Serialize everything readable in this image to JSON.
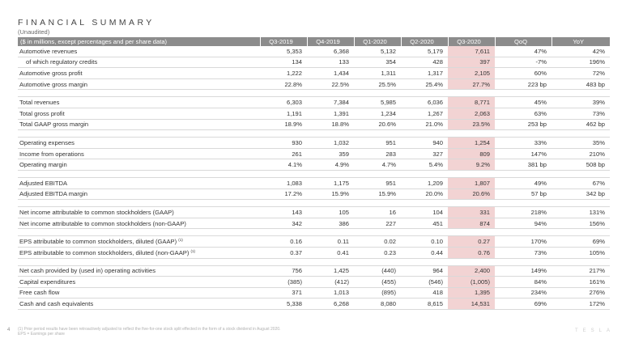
{
  "title": "FINANCIAL SUMMARY",
  "subtitle": "(Unaudited)",
  "header": {
    "label": "($ in millions, except percentages and per share data)",
    "columns": [
      "Q3-2019",
      "Q4-2019",
      "Q1-2020",
      "Q2-2020",
      "Q3-2020",
      "QoQ",
      "YoY"
    ]
  },
  "groups": [
    [
      {
        "label": "Automotive revenues",
        "values": [
          "5,353",
          "6,368",
          "5,132",
          "5,179",
          "7,611",
          "47%",
          "42%"
        ]
      },
      {
        "label": "of which regulatory credits",
        "indent": true,
        "values": [
          "134",
          "133",
          "354",
          "428",
          "397",
          "-7%",
          "196%"
        ]
      },
      {
        "label": "Automotive gross profit",
        "values": [
          "1,222",
          "1,434",
          "1,311",
          "1,317",
          "2,105",
          "60%",
          "72%"
        ]
      },
      {
        "label": "Automotive gross margin",
        "values": [
          "22.8%",
          "22.5%",
          "25.5%",
          "25.4%",
          "27.7%",
          "223 bp",
          "483 bp"
        ]
      }
    ],
    [
      {
        "label": "Total revenues",
        "values": [
          "6,303",
          "7,384",
          "5,985",
          "6,036",
          "8,771",
          "45%",
          "39%"
        ]
      },
      {
        "label": "Total gross profit",
        "values": [
          "1,191",
          "1,391",
          "1,234",
          "1,267",
          "2,063",
          "63%",
          "73%"
        ]
      },
      {
        "label": "Total GAAP gross margin",
        "values": [
          "18.9%",
          "18.8%",
          "20.6%",
          "21.0%",
          "23.5%",
          "253 bp",
          "462 bp"
        ]
      }
    ],
    [
      {
        "label": "Operating expenses",
        "values": [
          "930",
          "1,032",
          "951",
          "940",
          "1,254",
          "33%",
          "35%"
        ]
      },
      {
        "label": "Income from operations",
        "values": [
          "261",
          "359",
          "283",
          "327",
          "809",
          "147%",
          "210%"
        ]
      },
      {
        "label": "Operating margin",
        "values": [
          "4.1%",
          "4.9%",
          "4.7%",
          "5.4%",
          "9.2%",
          "381 bp",
          "508 bp"
        ]
      }
    ],
    [
      {
        "label": "Adjusted EBITDA",
        "values": [
          "1,083",
          "1,175",
          "951",
          "1,209",
          "1,807",
          "49%",
          "67%"
        ]
      },
      {
        "label": "Adjusted EBITDA margin",
        "values": [
          "17.2%",
          "15.9%",
          "15.9%",
          "20.0%",
          "20.6%",
          "57 bp",
          "342 bp"
        ]
      }
    ],
    [
      {
        "label": "Net income attributable to common stockholders (GAAP)",
        "values": [
          "143",
          "105",
          "16",
          "104",
          "331",
          "218%",
          "131%"
        ]
      },
      {
        "label": "Net income attributable to common stockholders (non-GAAP)",
        "values": [
          "342",
          "386",
          "227",
          "451",
          "874",
          "94%",
          "156%"
        ]
      }
    ],
    [
      {
        "label": "EPS attributable to common stockholders, diluted (GAAP)",
        "sup": "(1)",
        "values": [
          "0.16",
          "0.11",
          "0.02",
          "0.10",
          "0.27",
          "170%",
          "69%"
        ]
      },
      {
        "label": "EPS attributable to common stockholders, diluted (non-GAAP)",
        "sup": "(1)",
        "values": [
          "0.37",
          "0.41",
          "0.23",
          "0.44",
          "0.76",
          "73%",
          "105%"
        ]
      }
    ],
    [
      {
        "label": "Net cash provided by (used in) operating activities",
        "values": [
          "756",
          "1,425",
          "(440)",
          "964",
          "2,400",
          "149%",
          "217%"
        ]
      },
      {
        "label": "Capital expenditures",
        "values": [
          "(385)",
          "(412)",
          "(455)",
          "(546)",
          "(1,005)",
          "84%",
          "161%"
        ]
      },
      {
        "label": "Free cash flow",
        "values": [
          "371",
          "1,013",
          "(895)",
          "418",
          "1,395",
          "234%",
          "276%"
        ]
      },
      {
        "label": "Cash and cash equivalents",
        "values": [
          "5,338",
          "6,268",
          "8,080",
          "8,615",
          "14,531",
          "69%",
          "172%"
        ]
      }
    ]
  ],
  "highlight_column": 4,
  "highlight_color": "#f2d3d3",
  "header_color": "#8c8c8c",
  "footnotes": [
    "(1) Prior period results have been retroactively adjusted to reflect the five-for-one stock split effected in the form of a stock dividend in August 2020.",
    "EPS = Earnings per share"
  ],
  "page_number": "4",
  "brand": "TESLA"
}
